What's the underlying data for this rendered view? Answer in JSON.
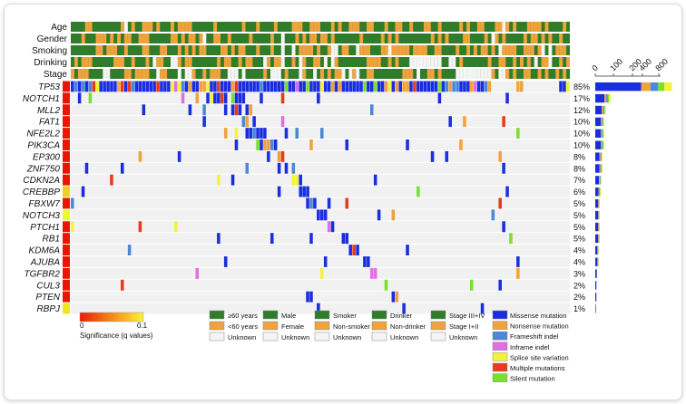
{
  "chart_data": {
    "type": "heatmap",
    "title": "",
    "clinical_tracks": [
      "Age",
      "Gender",
      "Smoking",
      "Drinking",
      "Stage"
    ],
    "genes": [
      {
        "name": "TP53",
        "pct": "85%",
        "q": 0.0,
        "count": 320
      },
      {
        "name": "NOTCH1",
        "pct": "17%",
        "q": 0.0,
        "count": 64
      },
      {
        "name": "MLL2",
        "pct": "12%",
        "q": 0.0,
        "count": 45
      },
      {
        "name": "FAT1",
        "pct": "10%",
        "q": 0.0,
        "count": 38
      },
      {
        "name": "NFE2L2",
        "pct": "10%",
        "q": 0.0,
        "count": 38
      },
      {
        "name": "PIK3CA",
        "pct": "10%",
        "q": 0.0,
        "count": 38
      },
      {
        "name": "EP300",
        "pct": "8%",
        "q": 0.0,
        "count": 30
      },
      {
        "name": "ZNF750",
        "pct": "8%",
        "q": 0.0,
        "count": 30
      },
      {
        "name": "CDKN2A",
        "pct": "7%",
        "q": 0.0,
        "count": 26
      },
      {
        "name": "CREBBP",
        "pct": "6%",
        "q": 0.08,
        "count": 23
      },
      {
        "name": "FBXW7",
        "pct": "5%",
        "q": 0.0,
        "count": 19
      },
      {
        "name": "NOTCH3",
        "pct": "5%",
        "q": 0.1,
        "count": 19
      },
      {
        "name": "PTCH1",
        "pct": "5%",
        "q": 0.0,
        "count": 19
      },
      {
        "name": "RB1",
        "pct": "5%",
        "q": 0.0,
        "count": 19
      },
      {
        "name": "KDM6A",
        "pct": "4%",
        "q": 0.0,
        "count": 15
      },
      {
        "name": "AJUBA",
        "pct": "4%",
        "q": 0.0,
        "count": 15
      },
      {
        "name": "TGFBR2",
        "pct": "3%",
        "q": 0.0,
        "count": 11
      },
      {
        "name": "CUL3",
        "pct": "2%",
        "q": 0.0,
        "count": 8
      },
      {
        "name": "PTEN",
        "pct": "2%",
        "q": 0.0,
        "count": 8
      },
      {
        "name": "RBPJ",
        "pct": "1%",
        "q": 0.09,
        "count": 4
      }
    ],
    "count_axis": {
      "ticks": [
        "0",
        "100",
        "200",
        "400",
        "800"
      ],
      "max": 800
    },
    "significance_scale": {
      "label": "Significance (q values)",
      "min_label": "0",
      "max_label": "0.1"
    },
    "legends": {
      "age": [
        "≥60 years",
        "<60 years",
        "Unknown"
      ],
      "gender": [
        "Male",
        "Female",
        "Unknown"
      ],
      "smoking": [
        "Smoker",
        "Non-smoker",
        "Unknown"
      ],
      "drinking": [
        "Drinker",
        "Non-drinker",
        "Unknown"
      ],
      "stage": [
        "Stage III+IV",
        "Stage I+II",
        "Unknown"
      ],
      "mutation": [
        {
          "label": "Missense mutation",
          "color": "#1a2ee0"
        },
        {
          "label": "Nonsense mutation",
          "color": "#f2a23a"
        },
        {
          "label": "Frameshift indel",
          "color": "#4a88d8"
        },
        {
          "label": "Inframe indel",
          "color": "#e070e0"
        },
        {
          "label": "Splice site variation",
          "color": "#f5f23c"
        },
        {
          "label": "Multiple mutations",
          "color": "#e83a1c"
        },
        {
          "label": "Silent mutation",
          "color": "#7ae030"
        }
      ]
    },
    "colors": {
      "clinical_dark": "#2f7d2a",
      "clinical_light": "#f0a23c",
      "unknown": "#f4f4f4",
      "row_bg": "#f1f1f1"
    }
  }
}
